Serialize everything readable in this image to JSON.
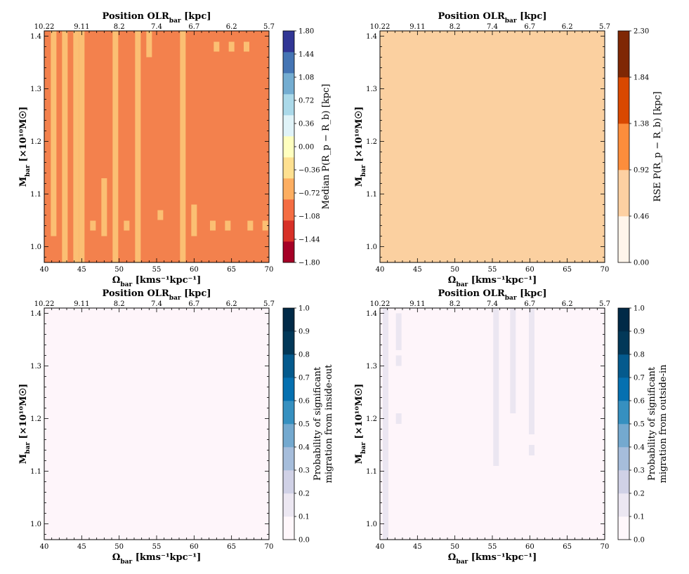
{
  "chart_data": [
    {
      "type": "heatmap",
      "panel": "top-left",
      "xlabel": "Ω_bar [kms⁻¹kpc⁻¹]",
      "xlabel_main": "Ω",
      "xlabel_sub": "bar",
      "xlabel_unit": "[kms⁻¹kpc⁻¹]",
      "ylabel_main": "M",
      "ylabel_sub": "bar",
      "ylabel_unit": "[×10¹⁰M☉]",
      "top_label_main": "Position OLR",
      "top_label_sub": "bar",
      "top_label_unit": "[kpc]",
      "x_ticks": [
        "40",
        "45",
        "50",
        "55",
        "60",
        "65",
        "70"
      ],
      "y_ticks": [
        "1.0",
        "1.1",
        "1.2",
        "1.3",
        "1.4"
      ],
      "top_ticks": [
        "10.22",
        "9.11",
        "8.2",
        "7.4",
        "6.7",
        "6.2",
        "5.7"
      ],
      "xlim": [
        40,
        70
      ],
      "ylim": [
        0.97,
        1.41
      ],
      "colorbar_label": "Median P(R_p − R_b) [kpc]",
      "colorbar_ticks": [
        "1.80",
        "1.44",
        "1.08",
        "0.72",
        "0.36",
        "0.00",
        "−0.36",
        "−0.72",
        "−1.08",
        "−1.44",
        "−1.80"
      ],
      "colorbar_colors": [
        "#a50026",
        "#d73027",
        "#f46d43",
        "#fdae61",
        "#fee090",
        "#ffffbf",
        "#e0f3f8",
        "#abd9e9",
        "#74add1",
        "#4575b4",
        "#313695"
      ],
      "base_color": "#f3814d",
      "highlight_color": "#fbbf73",
      "base_value": -0.9,
      "highlight_value": -0.54,
      "highlight_columns": [
        {
          "x": 41.25,
          "y0": 1.02,
          "y1": 1.41
        },
        {
          "x": 42.75,
          "y0": 0.97,
          "y1": 1.41
        },
        {
          "x": 44.25,
          "y0": 0.97,
          "y1": 1.41
        },
        {
          "x": 45.0,
          "y0": 0.97,
          "y1": 1.41
        },
        {
          "x": 48.0,
          "y0": 1.02,
          "y1": 1.13
        },
        {
          "x": 49.5,
          "y0": 0.97,
          "y1": 1.41
        },
        {
          "x": 52.5,
          "y0": 0.97,
          "y1": 1.41
        },
        {
          "x": 54.0,
          "y0": 1.36,
          "y1": 1.41
        },
        {
          "x": 58.5,
          "y0": 0.97,
          "y1": 1.41
        },
        {
          "x": 60.0,
          "y0": 1.02,
          "y1": 1.08
        }
      ],
      "highlight_cells": [
        {
          "x": 46.5,
          "y": 1.04
        },
        {
          "x": 51.0,
          "y": 1.04
        },
        {
          "x": 55.5,
          "y": 1.06
        },
        {
          "x": 62.5,
          "y": 1.04
        },
        {
          "x": 64.5,
          "y": 1.04
        },
        {
          "x": 67.5,
          "y": 1.04
        },
        {
          "x": 69.5,
          "y": 1.04
        },
        {
          "x": 63.0,
          "y": 1.38
        },
        {
          "x": 65.0,
          "y": 1.38
        },
        {
          "x": 67.0,
          "y": 1.38
        }
      ]
    },
    {
      "type": "heatmap",
      "panel": "top-right",
      "xlabel_main": "Ω",
      "xlabel_sub": "bar",
      "xlabel_unit": "[kms⁻¹kpc⁻¹]",
      "ylabel_main": "M",
      "ylabel_sub": "bar",
      "ylabel_unit": "[×10¹⁰M☉]",
      "top_label_main": "Position OLR",
      "top_label_sub": "bar",
      "top_label_unit": "[kpc]",
      "x_ticks": [
        "40",
        "45",
        "50",
        "55",
        "60",
        "65",
        "70"
      ],
      "y_ticks": [
        "1.0",
        "1.1",
        "1.2",
        "1.3",
        "1.4"
      ],
      "top_ticks": [
        "10.22",
        "9.11",
        "8.2",
        "7.4",
        "6.7",
        "6.2",
        "5.7"
      ],
      "xlim": [
        40,
        70
      ],
      "ylim": [
        0.97,
        1.41
      ],
      "colorbar_label": "RSE P(R_p − R_b) [kpc]",
      "colorbar_ticks": [
        "2.30",
        "1.84",
        "1.38",
        "0.92",
        "0.46",
        "0.00"
      ],
      "colorbar_colors": [
        "#fff5eb",
        "#fdd0a2",
        "#fd8d3c",
        "#d94801",
        "#7f2704"
      ],
      "base_color": "#fbd0a0",
      "base_value": 0.69
    },
    {
      "type": "heatmap",
      "panel": "bottom-left",
      "xlabel_main": "Ω",
      "xlabel_sub": "bar",
      "xlabel_unit": "[kms⁻¹kpc⁻¹]",
      "ylabel_main": "M",
      "ylabel_sub": "bar",
      "ylabel_unit": "[×10¹⁰M☉]",
      "top_label_main": "Position OLR",
      "top_label_sub": "bar",
      "top_label_unit": "[kpc]",
      "x_ticks": [
        "40",
        "45",
        "50",
        "55",
        "60",
        "65",
        "70"
      ],
      "y_ticks": [
        "1.0",
        "1.1",
        "1.2",
        "1.3",
        "1.4"
      ],
      "top_ticks": [
        "10.22",
        "9.11",
        "8.2",
        "7.4",
        "6.7",
        "6.2",
        "5.7"
      ],
      "xlim": [
        40,
        70
      ],
      "ylim": [
        0.97,
        1.41
      ],
      "colorbar_label_line1": "Probability of significant",
      "colorbar_label_line2": "migration from inside-out",
      "colorbar_ticks": [
        "1.0",
        "0.9",
        "0.8",
        "0.7",
        "0.6",
        "0.5",
        "0.4",
        "0.3",
        "0.2",
        "0.1",
        "0.0"
      ],
      "colorbar_colors": [
        "#fff7fb",
        "#ece7f2",
        "#d0d1e6",
        "#a6bddb",
        "#74a9cf",
        "#3690c0",
        "#0570b0",
        "#045a8d",
        "#023858",
        "#012a47"
      ],
      "base_color": "#fef5fa",
      "base_value": 0.02
    },
    {
      "type": "heatmap",
      "panel": "bottom-right",
      "xlabel_main": "Ω",
      "xlabel_sub": "bar",
      "xlabel_unit": "[kms⁻¹kpc⁻¹]",
      "ylabel_main": "M",
      "ylabel_sub": "bar",
      "ylabel_unit": "[×10¹⁰M☉]",
      "top_label_main": "Position OLR",
      "top_label_sub": "bar",
      "top_label_unit": "[kpc]",
      "x_ticks": [
        "40",
        "45",
        "50",
        "55",
        "60",
        "65",
        "70"
      ],
      "y_ticks": [
        "1.0",
        "1.1",
        "1.2",
        "1.3",
        "1.4"
      ],
      "top_ticks": [
        "10.22",
        "9.11",
        "8.2",
        "7.4",
        "6.7",
        "6.2",
        "5.7"
      ],
      "xlim": [
        40,
        70
      ],
      "ylim": [
        0.97,
        1.41
      ],
      "colorbar_label_line1": "Probability of significant",
      "colorbar_label_line2": "migration from outside-in",
      "colorbar_ticks": [
        "1.0",
        "0.9",
        "0.8",
        "0.7",
        "0.6",
        "0.5",
        "0.4",
        "0.3",
        "0.2",
        "0.1",
        "0.0"
      ],
      "colorbar_colors": [
        "#fff7fb",
        "#ece7f2",
        "#d0d1e6",
        "#a6bddb",
        "#74a9cf",
        "#3690c0",
        "#0570b0",
        "#045a8d",
        "#023858",
        "#012a47"
      ],
      "base_color": "#fef5fa",
      "base_value": 0.02,
      "highlight_color": "#ebe6f1",
      "highlight_value": 0.12,
      "highlight_columns": [
        {
          "x": 40.75,
          "y0": 0.97,
          "y1": 1.41
        },
        {
          "x": 42.5,
          "y0": 1.33,
          "y1": 1.4
        },
        {
          "x": 42.5,
          "y0": 1.3,
          "y1": 1.32
        },
        {
          "x": 42.5,
          "y0": 1.19,
          "y1": 1.21
        },
        {
          "x": 55.5,
          "y0": 1.11,
          "y1": 1.41
        },
        {
          "x": 57.75,
          "y0": 1.21,
          "y1": 1.41
        },
        {
          "x": 60.25,
          "y0": 1.17,
          "y1": 1.41
        },
        {
          "x": 60.25,
          "y0": 1.13,
          "y1": 1.15
        }
      ]
    }
  ]
}
